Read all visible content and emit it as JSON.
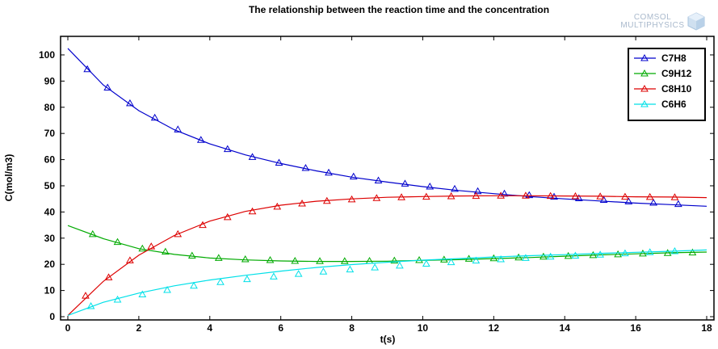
{
  "chart_data": {
    "type": "line",
    "title": "The relationship between the reaction time and the concentration",
    "xlabel": "t(s)",
    "ylabel": "C(mol/m3)",
    "xlim": [
      0,
      18
    ],
    "ylim": [
      0,
      104
    ],
    "xticks": [
      0,
      2,
      4,
      6,
      8,
      10,
      12,
      14,
      16,
      18
    ],
    "yticks": [
      0,
      10,
      20,
      30,
      40,
      50,
      60,
      70,
      80,
      90,
      100
    ],
    "grid": false,
    "legend": "top-right",
    "marker": "triangle",
    "series": [
      {
        "name": "C7H8",
        "color": "#0000cc",
        "x": [
          0,
          1,
          2,
          3,
          4,
          5,
          6,
          7,
          8,
          9,
          10,
          11,
          12,
          13,
          14,
          15,
          16,
          17,
          18
        ],
        "y": [
          102.5,
          88.5,
          78.7,
          71.4,
          66.0,
          61.8,
          58.5,
          55.7,
          53.3,
          51.4,
          49.7,
          48.2,
          47.0,
          45.9,
          45.0,
          44.2,
          43.4,
          42.8,
          42.2
        ],
        "markers_x": [
          0.55,
          1.12,
          1.75,
          2.45,
          3.1,
          3.75,
          4.5,
          5.2,
          5.95,
          6.7,
          7.35,
          8.05,
          8.75,
          9.5,
          10.2,
          10.9,
          11.55,
          12.3,
          13.0,
          13.7,
          14.4,
          15.1,
          15.8,
          16.5,
          17.2
        ],
        "markers_y": [
          94.5,
          87.5,
          81.5,
          76.0,
          71.5,
          67.5,
          64.0,
          61.0,
          58.8,
          56.8,
          55.0,
          53.5,
          52.0,
          50.8,
          49.7,
          48.8,
          47.9,
          47.0,
          46.4,
          45.8,
          45.2,
          44.6,
          44.0,
          43.5,
          43.0
        ]
      },
      {
        "name": "C9H12",
        "color": "#00aa00",
        "x": [
          0,
          1,
          2,
          3,
          4,
          5,
          6,
          7,
          8,
          9,
          10,
          11,
          12,
          13,
          14,
          15,
          16,
          17,
          18
        ],
        "y": [
          34.8,
          29.8,
          26.0,
          23.8,
          22.4,
          21.7,
          21.3,
          21.1,
          21.1,
          21.2,
          21.5,
          21.8,
          22.2,
          22.6,
          23.1,
          23.6,
          24.0,
          24.4,
          24.7
        ],
        "markers_x": [
          0.7,
          1.4,
          2.1,
          2.75,
          3.5,
          4.25,
          5.0,
          5.7,
          6.4,
          7.1,
          7.8,
          8.5,
          9.2,
          9.9,
          10.6,
          11.3,
          12.0,
          12.7,
          13.4,
          14.1,
          14.8,
          15.5,
          16.2,
          16.9,
          17.6
        ],
        "markers_y": [
          31.5,
          28.5,
          26.0,
          24.8,
          23.3,
          22.4,
          21.9,
          21.6,
          21.3,
          21.2,
          21.2,
          21.3,
          21.4,
          21.6,
          21.8,
          22.1,
          22.3,
          22.6,
          22.9,
          23.2,
          23.5,
          23.8,
          24.1,
          24.3,
          24.5
        ]
      },
      {
        "name": "C8H10",
        "color": "#dd0000",
        "x": [
          0,
          1,
          2,
          3,
          4,
          5,
          6,
          7,
          8,
          9,
          10,
          11,
          12,
          13,
          14,
          15,
          16,
          17,
          18
        ],
        "y": [
          0.5,
          13.5,
          23.5,
          31.0,
          36.5,
          40.2,
          42.6,
          44.1,
          45.0,
          45.6,
          45.9,
          46.1,
          46.2,
          46.2,
          46.1,
          46.0,
          45.8,
          45.7,
          45.5
        ],
        "markers_x": [
          0.5,
          1.15,
          1.75,
          2.35,
          3.1,
          3.8,
          4.5,
          5.2,
          5.9,
          6.6,
          7.3,
          8.0,
          8.7,
          9.4,
          10.1,
          10.8,
          11.5,
          12.2,
          12.9,
          13.6,
          14.3,
          15.0,
          15.7,
          16.4,
          17.1
        ],
        "markers_y": [
          8.0,
          15.0,
          21.5,
          26.8,
          31.5,
          35.0,
          38.0,
          40.2,
          42.0,
          43.2,
          44.2,
          44.8,
          45.3,
          45.6,
          45.8,
          46.0,
          46.1,
          46.2,
          46.2,
          46.1,
          46.0,
          45.9,
          45.8,
          45.7,
          45.6
        ]
      },
      {
        "name": "C6H6",
        "color": "#00e0e8",
        "x": [
          0,
          1,
          2,
          3,
          4,
          5,
          6,
          7,
          8,
          9,
          10,
          11,
          12,
          13,
          14,
          15,
          16,
          17,
          18
        ],
        "y": [
          0.5,
          5.5,
          9.0,
          11.8,
          14.0,
          15.8,
          17.4,
          18.8,
          19.9,
          20.8,
          21.6,
          22.2,
          22.8,
          23.3,
          23.7,
          24.2,
          24.6,
          25.0,
          25.5
        ],
        "markers_x": [
          0.65,
          1.4,
          2.1,
          2.8,
          3.55,
          4.3,
          5.05,
          5.8,
          6.5,
          7.2,
          7.95,
          8.65,
          9.35,
          10.1,
          10.8,
          11.5,
          12.2,
          12.9,
          13.6,
          14.3,
          15.0,
          15.7,
          16.4,
          17.1
        ],
        "markers_y": [
          4.0,
          6.5,
          8.5,
          10.2,
          11.8,
          13.2,
          14.3,
          15.3,
          16.3,
          17.2,
          18.0,
          18.8,
          19.5,
          20.2,
          20.8,
          21.4,
          21.9,
          22.4,
          22.9,
          23.3,
          23.7,
          24.2,
          24.6,
          25.0
        ]
      }
    ]
  },
  "watermark": {
    "line1": "COMSOL",
    "line2": "MULTIPHYSICS",
    "icon": "comsol-cube-logo"
  }
}
